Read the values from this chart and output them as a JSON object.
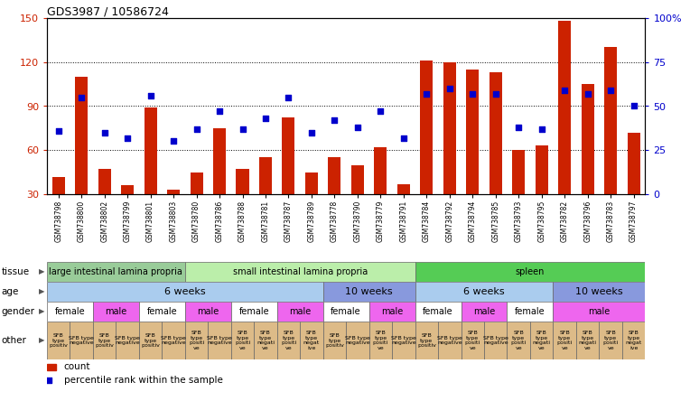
{
  "title": "GDS3987 / 10586724",
  "samples": [
    "GSM738798",
    "GSM738800",
    "GSM738802",
    "GSM738799",
    "GSM738801",
    "GSM738803",
    "GSM738780",
    "GSM738786",
    "GSM738788",
    "GSM738781",
    "GSM738787",
    "GSM738789",
    "GSM738778",
    "GSM738790",
    "GSM738779",
    "GSM738791",
    "GSM738784",
    "GSM738792",
    "GSM738794",
    "GSM738785",
    "GSM738793",
    "GSM738795",
    "GSM738782",
    "GSM738796",
    "GSM738783",
    "GSM738797"
  ],
  "counts": [
    42,
    110,
    47,
    36,
    89,
    33,
    45,
    75,
    47,
    55,
    82,
    45,
    55,
    50,
    62,
    37,
    121,
    120,
    115,
    113,
    60,
    63,
    148,
    105,
    130,
    72
  ],
  "percentiles": [
    36,
    55,
    35,
    32,
    56,
    30,
    37,
    47,
    37,
    43,
    55,
    35,
    42,
    38,
    47,
    32,
    57,
    60,
    57,
    57,
    38,
    37,
    59,
    57,
    59,
    50
  ],
  "ylim_left": [
    30,
    150
  ],
  "ylim_right": [
    0,
    100
  ],
  "yticks_left": [
    30,
    60,
    90,
    120,
    150
  ],
  "yticks_right": [
    0,
    25,
    50,
    75,
    100
  ],
  "bar_color": "#cc2200",
  "dot_color": "#0000cc",
  "tissue_groups": [
    {
      "label": "large intestinal lamina propria",
      "start": 0,
      "end": 5,
      "color": "#99cc99"
    },
    {
      "label": "small intestinal lamina propria",
      "start": 6,
      "end": 15,
      "color": "#bbeeaa"
    },
    {
      "label": "spleen",
      "start": 16,
      "end": 25,
      "color": "#55cc55"
    }
  ],
  "age_groups": [
    {
      "label": "6 weeks",
      "start": 0,
      "end": 11,
      "color": "#aaccee"
    },
    {
      "label": "10 weeks",
      "start": 12,
      "end": 15,
      "color": "#8899dd"
    },
    {
      "label": "6 weeks",
      "start": 16,
      "end": 21,
      "color": "#aaccee"
    },
    {
      "label": "10 weeks",
      "start": 22,
      "end": 25,
      "color": "#8899dd"
    }
  ],
  "gender_groups": [
    {
      "label": "female",
      "start": 0,
      "end": 1,
      "color": "#ffffff"
    },
    {
      "label": "male",
      "start": 2,
      "end": 3,
      "color": "#ee66ee"
    },
    {
      "label": "female",
      "start": 4,
      "end": 5,
      "color": "#ffffff"
    },
    {
      "label": "male",
      "start": 6,
      "end": 7,
      "color": "#ee66ee"
    },
    {
      "label": "female",
      "start": 8,
      "end": 9,
      "color": "#ffffff"
    },
    {
      "label": "male",
      "start": 10,
      "end": 11,
      "color": "#ee66ee"
    },
    {
      "label": "female",
      "start": 12,
      "end": 13,
      "color": "#ffffff"
    },
    {
      "label": "male",
      "start": 14,
      "end": 15,
      "color": "#ee66ee"
    },
    {
      "label": "female",
      "start": 16,
      "end": 17,
      "color": "#ffffff"
    },
    {
      "label": "male",
      "start": 18,
      "end": 19,
      "color": "#ee66ee"
    },
    {
      "label": "female",
      "start": 20,
      "end": 21,
      "color": "#ffffff"
    },
    {
      "label": "male",
      "start": 22,
      "end": 25,
      "color": "#ee66ee"
    }
  ],
  "other_groups": [
    {
      "label": "SFB\ntype\npositiv",
      "start": 0,
      "end": 0,
      "color": "#ddbb88"
    },
    {
      "label": "SFB type\nnegative",
      "start": 1,
      "end": 1,
      "color": "#ddbb88"
    },
    {
      "label": "SFB\ntype\npositiv",
      "start": 2,
      "end": 2,
      "color": "#ddbb88"
    },
    {
      "label": "SFB type\nnegative",
      "start": 3,
      "end": 3,
      "color": "#ddbb88"
    },
    {
      "label": "SFB\ntype\npositiv",
      "start": 4,
      "end": 4,
      "color": "#ddbb88"
    },
    {
      "label": "SFB type\nnegative",
      "start": 5,
      "end": 5,
      "color": "#ddbb88"
    },
    {
      "label": "SFB\ntype\npositi\nve",
      "start": 6,
      "end": 6,
      "color": "#ddbb88"
    },
    {
      "label": "SFB type\nnegative",
      "start": 7,
      "end": 7,
      "color": "#ddbb88"
    },
    {
      "label": "SFB\ntype\npositi\nve",
      "start": 8,
      "end": 8,
      "color": "#ddbb88"
    },
    {
      "label": "SFB\ntype\nnegati\nve",
      "start": 9,
      "end": 9,
      "color": "#ddbb88"
    },
    {
      "label": "SFB\ntype\npositi\nve",
      "start": 10,
      "end": 10,
      "color": "#ddbb88"
    },
    {
      "label": "SFB\ntype\nnegat\nive",
      "start": 11,
      "end": 11,
      "color": "#ddbb88"
    },
    {
      "label": "SFB\ntype\npositiv",
      "start": 12,
      "end": 12,
      "color": "#ddbb88"
    },
    {
      "label": "SFB type\nnegative",
      "start": 13,
      "end": 13,
      "color": "#ddbb88"
    },
    {
      "label": "SFB\ntype\npositi\nve",
      "start": 14,
      "end": 14,
      "color": "#ddbb88"
    },
    {
      "label": "SFB type\nnegative",
      "start": 15,
      "end": 15,
      "color": "#ddbb88"
    },
    {
      "label": "SFB\ntype\npositiv",
      "start": 16,
      "end": 16,
      "color": "#ddbb88"
    },
    {
      "label": "SFB type\nnegative",
      "start": 17,
      "end": 17,
      "color": "#ddbb88"
    },
    {
      "label": "SFB\ntype\npositi\nve",
      "start": 18,
      "end": 18,
      "color": "#ddbb88"
    },
    {
      "label": "SFB type\nnegative",
      "start": 19,
      "end": 19,
      "color": "#ddbb88"
    },
    {
      "label": "SFB\ntype\npositi\nve",
      "start": 20,
      "end": 20,
      "color": "#ddbb88"
    },
    {
      "label": "SFB\ntype\nnegati\nve",
      "start": 21,
      "end": 21,
      "color": "#ddbb88"
    },
    {
      "label": "SFB\ntype\npositi\nve",
      "start": 22,
      "end": 22,
      "color": "#ddbb88"
    },
    {
      "label": "SFB\ntype\nnegati\nve",
      "start": 23,
      "end": 23,
      "color": "#ddbb88"
    },
    {
      "label": "SFB\ntype\npositi\nve",
      "start": 24,
      "end": 24,
      "color": "#ddbb88"
    },
    {
      "label": "SFB\ntype\nnegat\nive",
      "start": 25,
      "end": 25,
      "color": "#ddbb88"
    }
  ],
  "row_labels": [
    "tissue",
    "age",
    "gender",
    "other"
  ],
  "legend_count_color": "#cc2200",
  "legend_dot_color": "#0000cc"
}
